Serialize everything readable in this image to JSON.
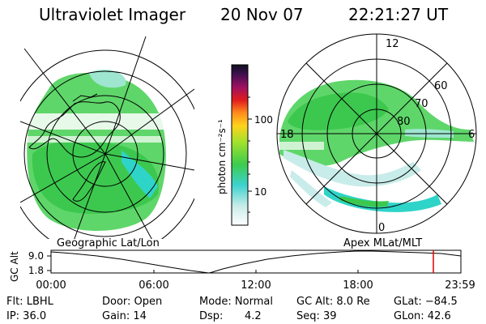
{
  "header": {
    "title": "Ultraviolet Imager",
    "date": "20 Nov 07",
    "time": "22:21:27 UT"
  },
  "colorbar": {
    "axis_label": "photon cm⁻²s⁻¹",
    "ticks": [
      "100",
      "10"
    ]
  },
  "left_map": {
    "caption": "Geographic Lat/Lon"
  },
  "right_map": {
    "caption": "Apex MLat/MLT",
    "mlt_labels": [
      "12",
      "18",
      "6",
      "0"
    ],
    "lat_labels": [
      "60",
      "70",
      "80"
    ]
  },
  "altitude_plot": {
    "ylabel": "GC Alt",
    "y_ticks": [
      "9.0",
      "1.8"
    ],
    "x_ticks": [
      "00:00",
      "06:00",
      "12:00",
      "18:00",
      "23:59"
    ],
    "marker_color": "#dd0000"
  },
  "info": {
    "flt": "Flt: LBHL",
    "ip": "IP: 36.0",
    "door": "Door: Open",
    "gain": "Gain: 14",
    "mode": "Mode: Normal",
    "dsp_label": "Dsp:",
    "dsp_value": "4.2",
    "gcalt": "GC Alt: 8.0 Re",
    "seq": "Seq: 39",
    "glat": "GLat: −84.5",
    "glon": "GLon:  42.6"
  }
}
